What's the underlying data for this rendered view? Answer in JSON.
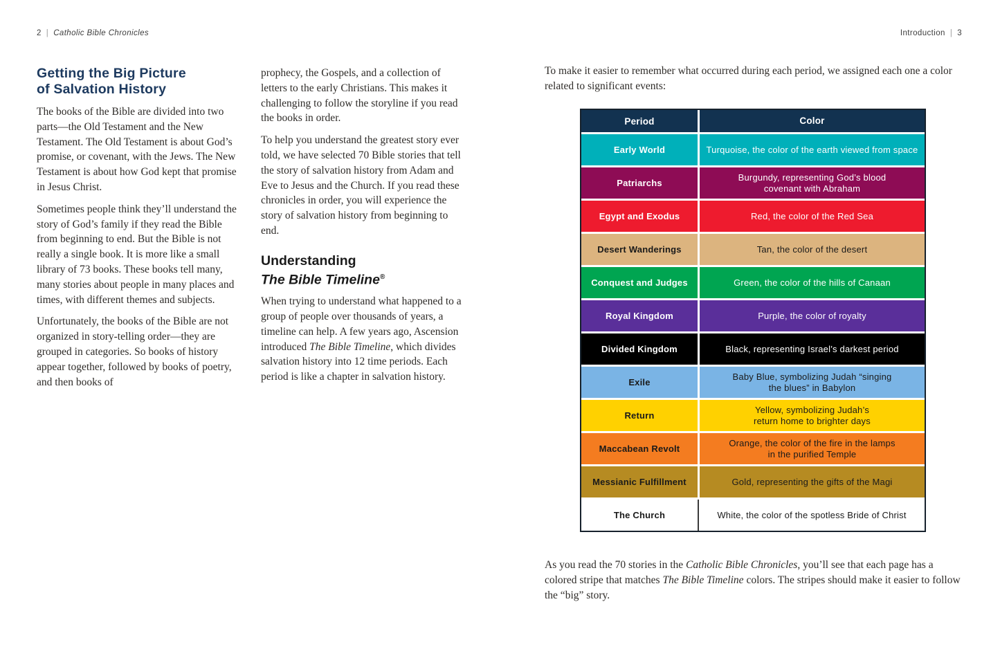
{
  "theme": {
    "heading_navy": "#1d3a5f",
    "table_border": "#16212c",
    "text_dark": "#2e2b28"
  },
  "page_left": {
    "header": {
      "page_num": "2",
      "separator": "|",
      "book_title": "Catholic Bible Chronicles"
    },
    "title_line1": "Getting the Big Picture",
    "title_line2": "of Salvation History",
    "para1": "The books of the Bible are divided into two parts—the Old Testament and the New Testament. The Old Testament is about God’s promise, or covenant, with the Jews. The New Testament is about how God kept that promise in Jesus Christ.",
    "para2": "Sometimes people think they’ll understand the story of God’s family if they read the Bible from beginning to end. But the Bible is not really a single book. It is more like a small library of 73 books. These books tell many, many stories about people in many places and times, with different themes and subjects.",
    "para3": "Unfortunately, the books of the Bible are not organized in story-telling order—they are grouped in categories. So books of history appear together, followed by books of poetry, and then books of",
    "col2_para1": "prophecy, the Gospels, and a collection of letters to the early Christians. This makes it challenging to follow the storyline if you read the books in order.",
    "col2_para2": "To help you understand the greatest story ever told, we have selected 70 Bible stories that tell the story of salvation history from Adam and Eve to Jesus and the Church. If you read these chronicles in order, you will experience the story of salvation history from beginning to end.",
    "sub_title_line1": "Understanding",
    "sub_title_line2": "The Bible Timeline",
    "sub_title_reg": "®",
    "col2_para3_part1": "When trying to understand what happened to a group of people over thousands of years, a timeline can help. A few years ago, Ascension introduced ",
    "col2_para3_italic": "The Bible Timeline",
    "col2_para3_part2": ", which divides salvation history into 12 time periods. Each period is like a chapter in salvation history."
  },
  "page_right": {
    "header": {
      "section_title": "Introduction",
      "separator": "|",
      "page_num": "3"
    },
    "intro": "To make it easier to remember what occurred during each period, we assigned each one a color related to significant events:",
    "table": {
      "header": {
        "period_label": "Period",
        "color_label": "Color",
        "bg": "#123250",
        "fg": "#ffffff"
      },
      "rows": [
        {
          "period": "Early World",
          "desc": "Turquoise, the color of the earth viewed from space",
          "bg": "#00b0ba",
          "fg": "#ffffff"
        },
        {
          "period": "Patriarchs",
          "desc": "Burgundy, representing God’s blood\ncovenant with Abraham",
          "bg": "#8e0c55",
          "fg": "#ffffff"
        },
        {
          "period": "Egypt and Exodus",
          "desc": "Red, the color of the Red Sea",
          "bg": "#ee1b2e",
          "fg": "#ffffff"
        },
        {
          "period": "Desert Wanderings",
          "desc": "Tan, the color of the desert",
          "bg": "#dcb47f",
          "fg": "#1a1a1a"
        },
        {
          "period": "Conquest and Judges",
          "desc": "Green, the color of the hills of Canaan",
          "bg": "#00a551",
          "fg": "#ffffff"
        },
        {
          "period": "Royal Kingdom",
          "desc": "Purple, the color of royalty",
          "bg": "#5a2f9a",
          "fg": "#ffffff"
        },
        {
          "period": "Divided Kingdom",
          "desc": "Black, representing Israel’s darkest period",
          "bg": "#000000",
          "fg": "#ffffff"
        },
        {
          "period": "Exile",
          "desc": "Baby Blue, symbolizing Judah “singing\nthe blues” in Babylon",
          "bg": "#7ab4e5",
          "fg": "#1a1a1a"
        },
        {
          "period": "Return",
          "desc": "Yellow, symbolizing Judah’s\nreturn home to brighter days",
          "bg": "#ffd100",
          "fg": "#1a1a1a"
        },
        {
          "period": "Maccabean Revolt",
          "desc": "Orange, the color of the fire in the lamps\nin the purified Temple",
          "bg": "#f47c20",
          "fg": "#1a1a1a"
        },
        {
          "period": "Messianic Fulfillment",
          "desc": "Gold, representing the gifts of the Magi",
          "bg": "#b68b22",
          "fg": "#1a1a1a"
        },
        {
          "period": "The Church",
          "desc": "White, the color of the spotless Bride of Christ",
          "bg": "#ffffff",
          "fg": "#1a1a1a"
        }
      ]
    },
    "outro_part1": "As you read the 70 stories in the ",
    "outro_italic1": "Catholic Bible Chronicles",
    "outro_part2": ", you’ll see that each page has a colored stripe that matches ",
    "outro_italic2": "The Bible Timeline",
    "outro_part3": " colors. The stripes should make it easier to follow the “big” story."
  }
}
